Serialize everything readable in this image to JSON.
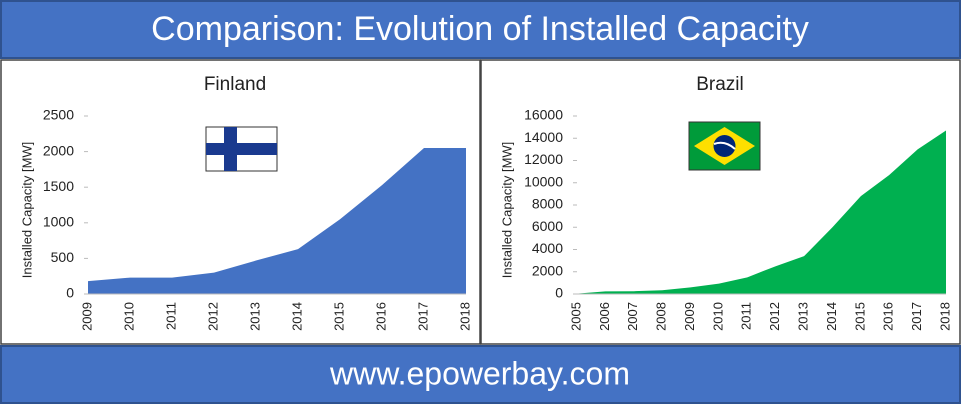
{
  "title": "Comparison: Evolution of Installed Capacity",
  "footer": "www.epowerbay.com",
  "chart_data": [
    {
      "type": "area",
      "title": "Finland",
      "y_label": "Installed Capacity [MW]",
      "color": "#4472c4",
      "categories": [
        "2009",
        "2010",
        "2011",
        "2012",
        "2013",
        "2014",
        "2015",
        "2016",
        "2017",
        "2018"
      ],
      "values": [
        180,
        230,
        230,
        300,
        470,
        630,
        1050,
        1530,
        2050,
        2050
      ],
      "ylim": [
        0,
        2500
      ],
      "yticks": [
        0,
        500,
        1000,
        1500,
        2000,
        2500
      ]
    },
    {
      "type": "area",
      "title": "Brazil",
      "y_label": "Installed Capacity [MW]",
      "color": "#00b050",
      "categories": [
        "2005",
        "2006",
        "2007",
        "2008",
        "2009",
        "2010",
        "2011",
        "2012",
        "2013",
        "2014",
        "2015",
        "2016",
        "2017",
        "2018"
      ],
      "values": [
        30,
        240,
        250,
        340,
        600,
        930,
        1500,
        2500,
        3400,
        6000,
        8800,
        10700,
        13000,
        14700
      ],
      "ylim": [
        0,
        16000
      ],
      "yticks": [
        0,
        2000,
        4000,
        6000,
        8000,
        10000,
        12000,
        14000,
        16000
      ]
    }
  ]
}
